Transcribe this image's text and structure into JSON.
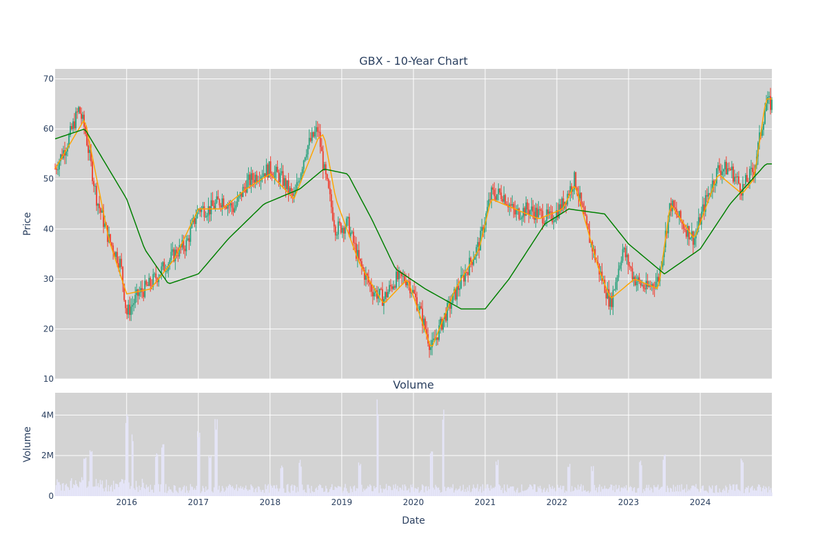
{
  "chart_data": [
    {
      "type": "candlestick",
      "title": "GBX - 10-Year Chart",
      "ylabel": "Price",
      "ylim": [
        10,
        72
      ],
      "yticks": [
        "10",
        "20",
        "30",
        "40",
        "50",
        "60",
        "70"
      ],
      "x_range": [
        "2015-01-02",
        "2024-12-31"
      ],
      "grid": true,
      "colors": {
        "up": "#26a17b",
        "down": "#ef3b2c",
        "ma_short": "#ffa500",
        "ma_long": "#008000",
        "plot_bg": "#d3d3d3",
        "grid": "#ffffff"
      },
      "series": [
        {
          "kind": "candles",
          "x": [
            "2015-01",
            "2015-03",
            "2015-05",
            "2015-06",
            "2015-08",
            "2015-10",
            "2015-12",
            "2016-01",
            "2016-03",
            "2016-05",
            "2016-07",
            "2016-09",
            "2016-11",
            "2017-01",
            "2017-03",
            "2017-05",
            "2017-07",
            "2017-09",
            "2017-11",
            "2018-01",
            "2018-03",
            "2018-05",
            "2018-07",
            "2018-09",
            "2018-10",
            "2018-12",
            "2019-02",
            "2019-04",
            "2019-06",
            "2019-08",
            "2019-10",
            "2019-12",
            "2020-02",
            "2020-04",
            "2020-06",
            "2020-08",
            "2020-10",
            "2020-12",
            "2021-02",
            "2021-04",
            "2021-06",
            "2021-08",
            "2021-10",
            "2021-12",
            "2022-02",
            "2022-04",
            "2022-06",
            "2022-08",
            "2022-10",
            "2022-12",
            "2023-02",
            "2023-04",
            "2023-06",
            "2023-08",
            "2023-10",
            "2023-12",
            "2024-02",
            "2024-04",
            "2024-06",
            "2024-08",
            "2024-10",
            "2024-12"
          ],
          "close": [
            52,
            57,
            64,
            60,
            46,
            38,
            33,
            23,
            27,
            29,
            32,
            35,
            37,
            44,
            44,
            46,
            44,
            49,
            51,
            52,
            50,
            46,
            56,
            60,
            52,
            40,
            41,
            33,
            28,
            26,
            30,
            30,
            24,
            16,
            22,
            27,
            32,
            37,
            47,
            47,
            43,
            44,
            43,
            42,
            45,
            50,
            40,
            32,
            25,
            36,
            30,
            28,
            30,
            45,
            41,
            38,
            46,
            52,
            52,
            48,
            52,
            65
          ]
        },
        {
          "kind": "line",
          "name": "",
          "x": [
            "2015-01",
            "2015-05",
            "2015-06",
            "2015-10",
            "2016-01",
            "2016-05",
            "2016-09",
            "2017-01",
            "2017-05",
            "2017-09",
            "2018-01",
            "2018-05",
            "2018-09",
            "2018-10",
            "2018-12",
            "2019-04",
            "2019-08",
            "2019-12",
            "2020-04",
            "2020-08",
            "2020-12",
            "2021-02",
            "2021-06",
            "2021-10",
            "2022-02",
            "2022-04",
            "2022-08",
            "2022-10",
            "2023-02",
            "2023-06",
            "2023-08",
            "2023-12",
            "2024-04",
            "2024-08",
            "2024-10",
            "2024-12"
          ],
          "y": [
            52,
            60,
            62,
            38,
            27,
            28,
            34,
            44,
            44,
            48,
            51,
            46,
            58,
            59,
            46,
            33,
            25,
            30,
            16,
            28,
            36,
            46,
            44,
            42,
            44,
            49,
            32,
            26,
            30,
            28,
            45,
            38,
            51,
            47,
            50,
            66
          ]
        },
        {
          "kind": "line",
          "name": "",
          "x": [
            "2015-01",
            "2015-06",
            "2015-09",
            "2016-01",
            "2016-04",
            "2016-08",
            "2017-01",
            "2017-06",
            "2017-12",
            "2018-06",
            "2018-10",
            "2019-02",
            "2019-06",
            "2019-10",
            "2020-03",
            "2020-09",
            "2021-01",
            "2021-05",
            "2021-11",
            "2022-03",
            "2022-09",
            "2023-01",
            "2023-07",
            "2024-01",
            "2024-06",
            "2024-12"
          ],
          "y": [
            58,
            60,
            54,
            46,
            36,
            29,
            31,
            38,
            45,
            48,
            52,
            51,
            42,
            32,
            28,
            24,
            24,
            30,
            41,
            44,
            43,
            37,
            31,
            36,
            45,
            53
          ]
        }
      ]
    },
    {
      "type": "bar",
      "title": "Volume",
      "xlabel": "Date",
      "ylabel": "Volume",
      "ylim": [
        0,
        5100000
      ],
      "yticks": [
        "0",
        "2M",
        "4M"
      ],
      "xticks": [
        "2016",
        "2017",
        "2018",
        "2019",
        "2020",
        "2021",
        "2022",
        "2023",
        "2024"
      ],
      "colors": {
        "bar": "#e6e6fa"
      },
      "spikes": {
        "x": [
          "2015-06",
          "2015-07",
          "2016-01",
          "2016-02",
          "2016-06",
          "2016-07",
          "2017-01",
          "2017-03",
          "2017-04",
          "2018-03",
          "2018-06",
          "2019-04",
          "2019-07",
          "2020-04",
          "2020-06",
          "2021-03",
          "2022-03",
          "2022-07",
          "2023-03",
          "2023-07",
          "2024-08"
        ],
        "y": [
          2200000,
          2400000,
          4100000,
          3200000,
          2400000,
          2900000,
          3400000,
          2100000,
          3900000,
          1700000,
          1800000,
          1800000,
          4800000,
          2400000,
          4400000,
          1900000,
          1600000,
          1500000,
          1800000,
          2100000,
          2000000
        ]
      }
    }
  ]
}
